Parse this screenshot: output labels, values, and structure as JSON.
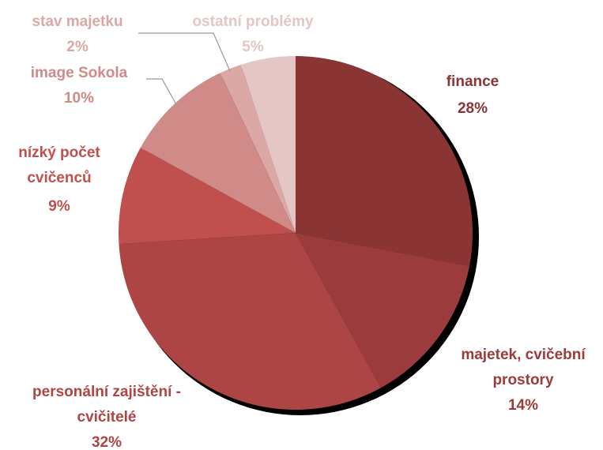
{
  "chart_data": {
    "type": "pie",
    "categories": [
      "finance",
      "majetek, cvičební prostory",
      "personální zajištění - cvičitelé",
      "nízký počet cvičenců",
      "image Sokola",
      "stav majetku",
      "ostatní problémy"
    ],
    "values": [
      28,
      14,
      32,
      9,
      10,
      2,
      5
    ],
    "value_labels": [
      "28%",
      "14%",
      "32%",
      "9%",
      "10%",
      "2%",
      "5%"
    ],
    "colors": [
      "#8b3434",
      "#9c3b3b",
      "#ad4545",
      "#c0504d",
      "#d08a87",
      "#dba8a6",
      "#e5c6c6"
    ]
  }
}
